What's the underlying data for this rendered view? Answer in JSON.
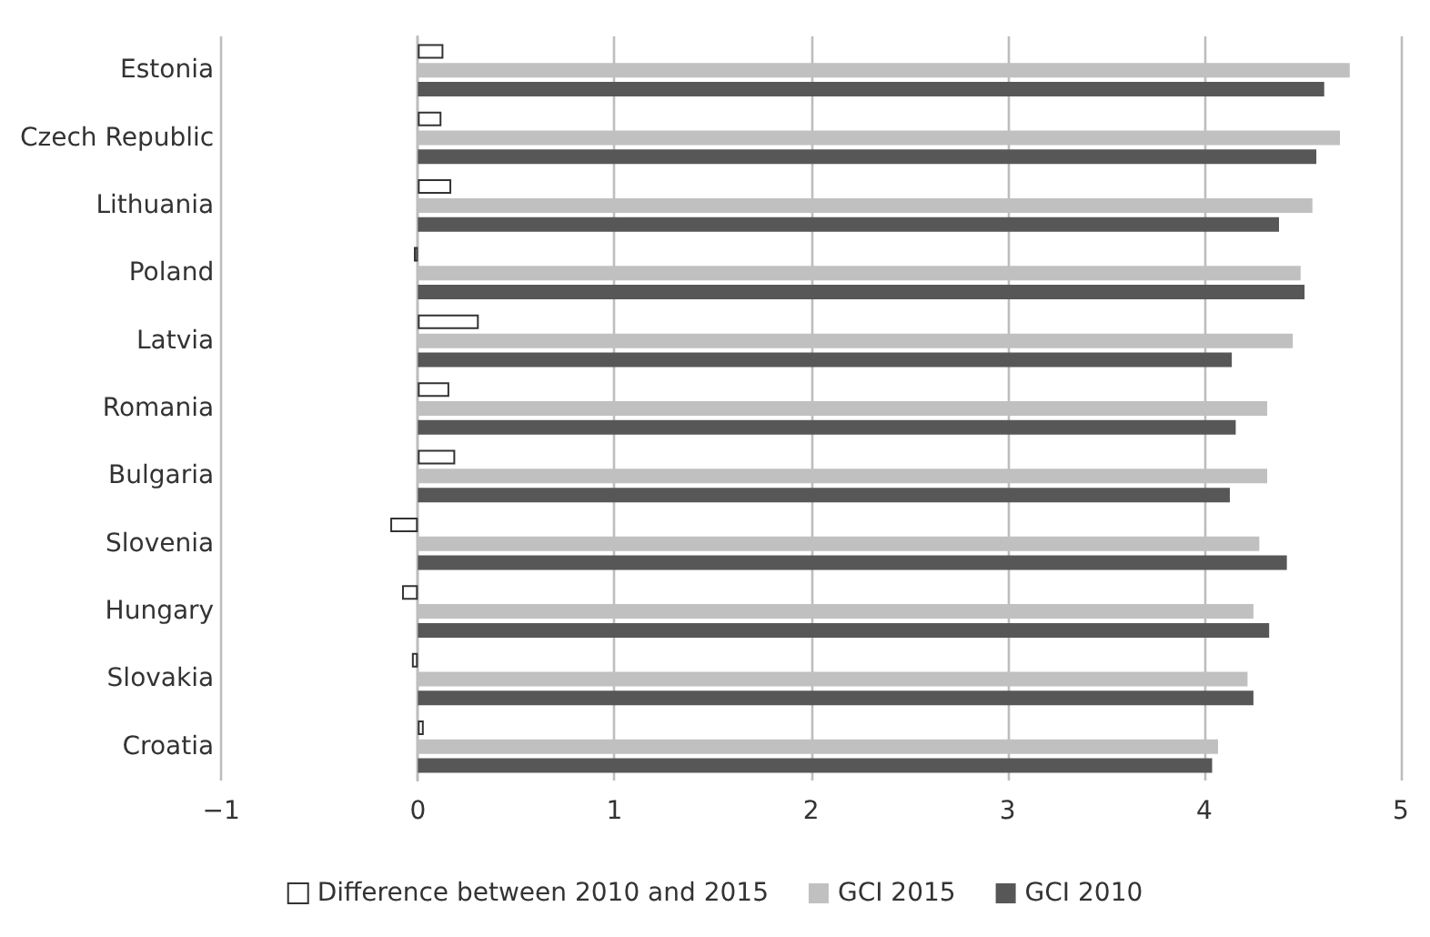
{
  "chart_data": {
    "type": "bar",
    "orientation": "horizontal",
    "categories": [
      "Estonia",
      "Czech Republic",
      "Lithuania",
      "Poland",
      "Latvia",
      "Romania",
      "Bulgaria",
      "Slovenia",
      "Hungary",
      "Slovakia",
      "Croatia"
    ],
    "series": [
      {
        "name": "Difference between 2010 and 2015",
        "color": "#ffffff",
        "values": [
          0.13,
          0.12,
          0.17,
          -0.02,
          0.31,
          0.16,
          0.19,
          -0.14,
          -0.08,
          -0.03,
          0.03
        ]
      },
      {
        "name": "GCI 2015",
        "color": "#c0c0c0",
        "values": [
          4.74,
          4.69,
          4.55,
          4.49,
          4.45,
          4.32,
          4.32,
          4.28,
          4.25,
          4.22,
          4.07
        ]
      },
      {
        "name": "GCI 2010",
        "color": "#575757",
        "values": [
          4.61,
          4.57,
          4.38,
          4.51,
          4.14,
          4.16,
          4.13,
          4.42,
          4.33,
          4.25,
          4.04
        ]
      }
    ],
    "xlim": [
      -1,
      5
    ],
    "xticks": [
      {
        "value": -1,
        "label": "−1"
      },
      0,
      1,
      2,
      3,
      4,
      5
    ],
    "grid": "x",
    "legend": "bottom"
  }
}
